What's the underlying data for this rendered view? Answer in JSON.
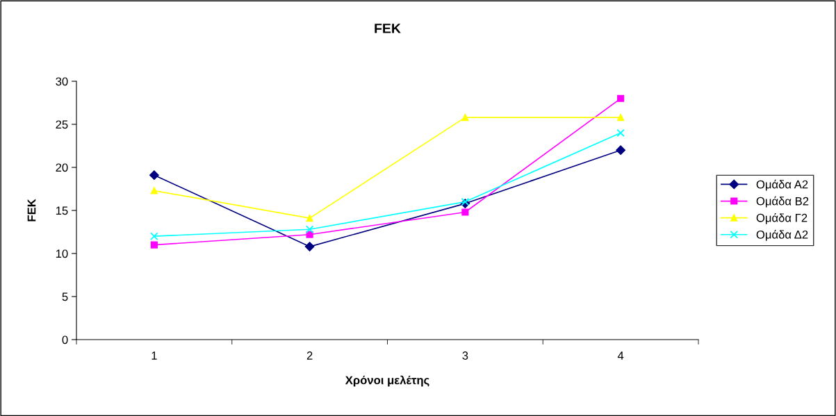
{
  "chart_data": {
    "type": "line",
    "title": "FEK",
    "xlabel": "Χρόνοι μελέτης",
    "ylabel": "FEK",
    "categories": [
      "1",
      "2",
      "3",
      "4"
    ],
    "series": [
      {
        "name": "Ομάδα Α2",
        "color": "#000080",
        "marker": "diamond",
        "values": [
          19.1,
          10.8,
          15.8,
          22.0
        ]
      },
      {
        "name": "Ομάδα Β2",
        "color": "#ff00ff",
        "marker": "square",
        "values": [
          11.0,
          12.2,
          14.8,
          28.0
        ]
      },
      {
        "name": "Ομάδα Γ2",
        "color": "#ffff00",
        "marker": "triangle",
        "values": [
          17.3,
          14.1,
          25.8,
          25.8
        ]
      },
      {
        "name": "Ομάδα Δ2",
        "color": "#00ffff",
        "marker": "cross",
        "values": [
          12.0,
          12.8,
          16.0,
          24.0
        ]
      }
    ],
    "ylim": [
      0,
      30
    ],
    "yticks": [
      0,
      5,
      10,
      15,
      20,
      25,
      30
    ],
    "grid": false,
    "legend": "right",
    "line_style": "solid"
  }
}
